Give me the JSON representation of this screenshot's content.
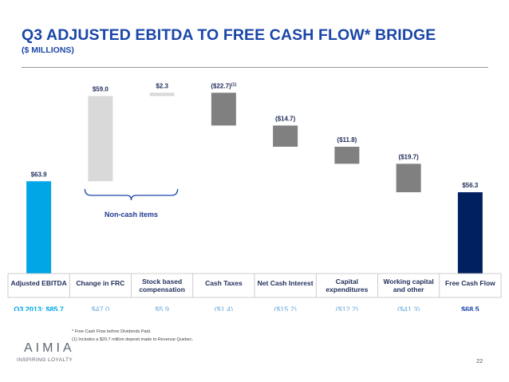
{
  "slide": {
    "title": "Q3 ADJUSTED EBITDA TO FREE CASH FLOW* BRIDGE",
    "subtitle": "($ MILLIONS)",
    "page_number": "22",
    "footnotes": [
      "* Free Cash Flow before Dividends Paid.",
      "(1)    Includes a $20.7 million deposit made to Revenue Quebec."
    ],
    "logo": {
      "word": "AIMIA",
      "tagline": "INSPIRING LOYALTY"
    }
  },
  "chart_data": {
    "type": "waterfall",
    "categories": [
      {
        "lines": [
          "Adjusted EBITDA"
        ]
      },
      {
        "lines": [
          "Change in FRC"
        ]
      },
      {
        "lines": [
          "Stock based",
          "compensation"
        ]
      },
      {
        "lines": [
          "Cash Taxes"
        ]
      },
      {
        "lines": [
          "Net Cash Interest"
        ]
      },
      {
        "lines": [
          "Capital",
          "expenditures"
        ]
      },
      {
        "lines": [
          "Working capital",
          "and other"
        ]
      },
      {
        "lines": [
          "Free Cash Flow"
        ]
      }
    ],
    "bars": [
      {
        "kind": "total",
        "start": 0,
        "end": 63.9,
        "label": "$63.9",
        "color": "#00a6e6"
      },
      {
        "kind": "delta",
        "start": 63.9,
        "end": 122.9,
        "label": "$59.0",
        "color": "#d9d9d9"
      },
      {
        "kind": "delta",
        "start": 122.9,
        "end": 125.2,
        "label": "$2.3",
        "color": "#d9d9d9"
      },
      {
        "kind": "delta",
        "start": 125.2,
        "end": 102.5,
        "label": "($22.7)",
        "label_sup": "(1)",
        "color": "#808080"
      },
      {
        "kind": "delta",
        "start": 102.5,
        "end": 87.8,
        "label": "($14.7)",
        "color": "#808080"
      },
      {
        "kind": "delta",
        "start": 87.8,
        "end": 76.0,
        "label": "($11.8)",
        "color": "#808080"
      },
      {
        "kind": "delta",
        "start": 76.0,
        "end": 56.3,
        "label": "($19.7)",
        "color": "#808080"
      },
      {
        "kind": "total",
        "start": 0,
        "end": 56.3,
        "label": "$56.3",
        "color": "#002060"
      }
    ],
    "bracket": {
      "label": "Non-cash items",
      "from_index": 1,
      "to_index": 2
    },
    "comparison": {
      "label": "Q3 2013: $85.7",
      "values": [
        "$47.0",
        "$5.9",
        "($1.4)",
        "($15.2)",
        "($12.2)",
        "($41.3)",
        "$68.5"
      ]
    },
    "ylim": [
      0,
      130
    ]
  }
}
